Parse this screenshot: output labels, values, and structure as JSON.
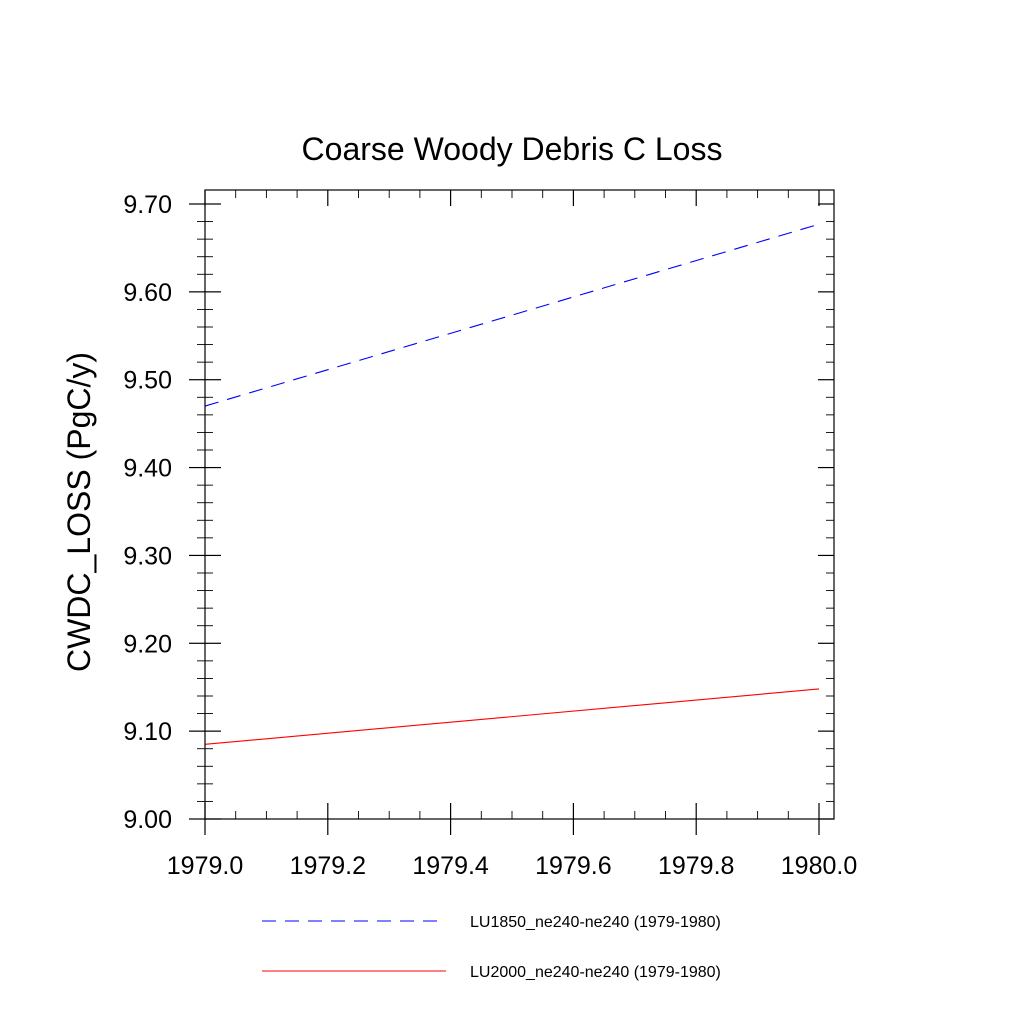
{
  "chart_data": {
    "type": "line",
    "title": "Coarse Woody Debris C Loss",
    "xlabel": "",
    "ylabel": "CWDC_LOSS  (PgC/y)",
    "xlim": [
      1979.0,
      1980.0
    ],
    "ylim": [
      9.0,
      9.7
    ],
    "x_ticks": [
      1979.0,
      1979.2,
      1979.4,
      1979.6,
      1979.8,
      1980.0
    ],
    "x_tick_labels": [
      "1979.0",
      "1979.2",
      "1979.4",
      "1979.6",
      "1979.8",
      "1980.0"
    ],
    "y_ticks": [
      9.0,
      9.1,
      9.2,
      9.3,
      9.4,
      9.5,
      9.6,
      9.7
    ],
    "y_tick_labels": [
      "9.00",
      "9.10",
      "9.20",
      "9.30",
      "9.40",
      "9.50",
      "9.60",
      "9.70"
    ],
    "grid": false,
    "legend_placement": "bottom",
    "series": [
      {
        "name": "LU1850_ne240-ne240 (1979-1980)",
        "x": [
          1979.0,
          1980.0
        ],
        "values": [
          9.47,
          9.677
        ],
        "color": "#0000ff",
        "dash": "dashed"
      },
      {
        "name": "LU2000_ne240-ne240 (1979-1980)",
        "x": [
          1979.0,
          1980.0
        ],
        "values": [
          9.085,
          9.148
        ],
        "color": "#ff0000",
        "dash": "solid"
      }
    ]
  }
}
